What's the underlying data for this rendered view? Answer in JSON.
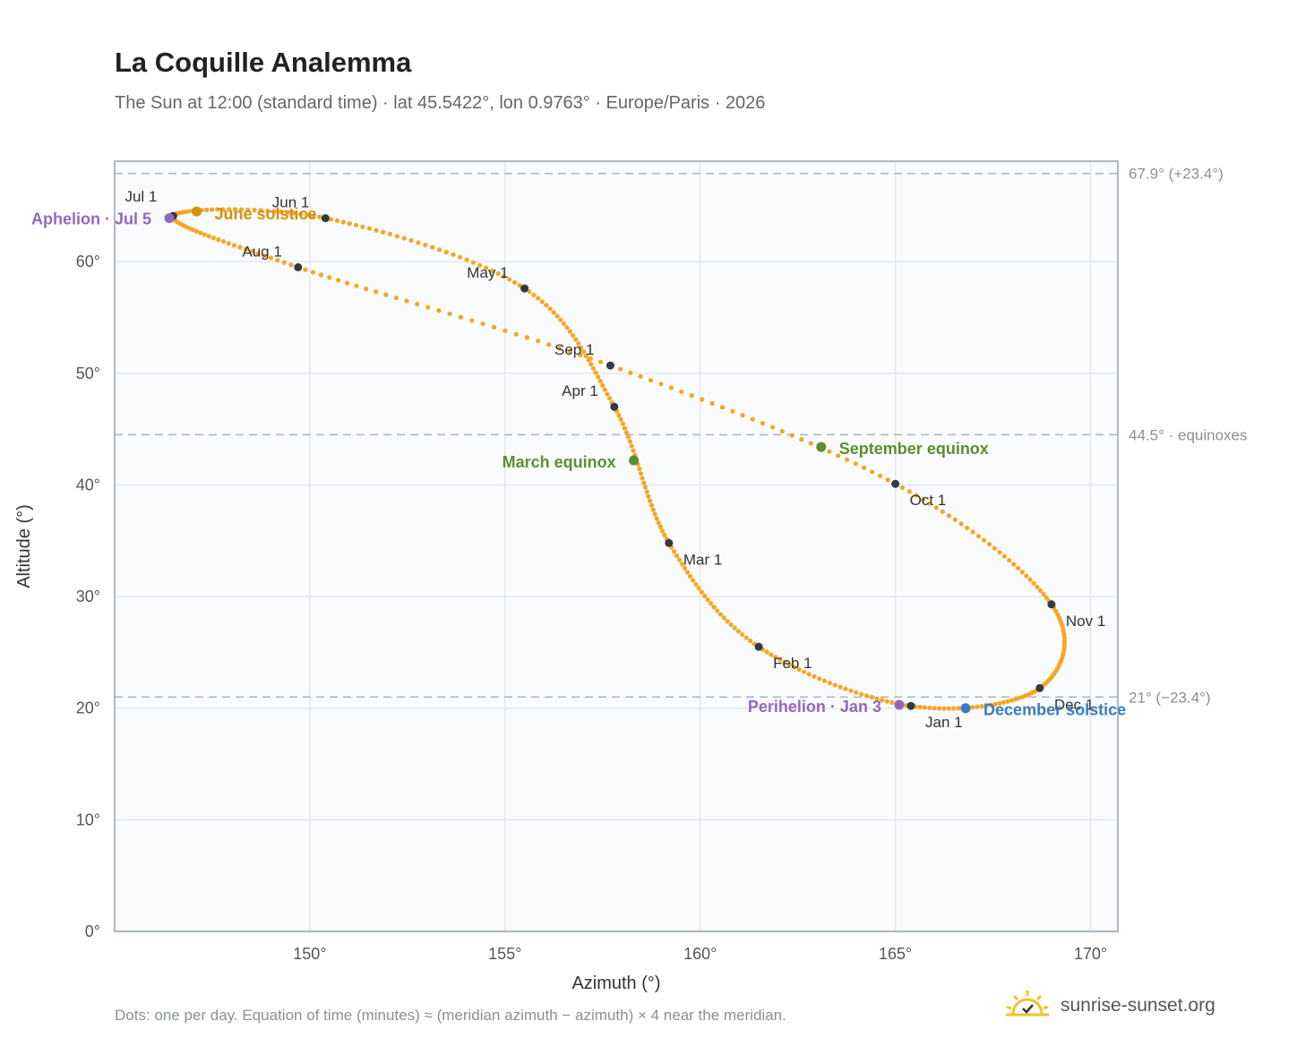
{
  "title": "La Coquille Analemma",
  "subtitle": "The Sun at 12:00 (standard time) · lat 45.5422°, lon 0.9763° · Europe/Paris · 2026",
  "footnote": "Dots: one per day. Equation of time (minutes) ≈ (meridian azimuth − azimuth) × 4 near the meridian.",
  "brand": {
    "name": "sunrise-sunset.org",
    "icon": "sun-horizon-icon"
  },
  "colors": {
    "curve": "#f5a623",
    "month_dot": "#333a44",
    "aphelion": "#9467bd",
    "perihelion": "#9467bd",
    "june_solstice": "#d4900f",
    "december_solstice": "#3a7cc2",
    "equinox": "#5b8f2e",
    "reference_line": "#a9b4bf",
    "plot_bg": "#f9fbfd",
    "grid": "#e3e8ee",
    "frame": "#97a2ae"
  },
  "chart_data": {
    "type": "scatter",
    "xlabel": "Azimuth (°)",
    "ylabel": "Altitude (°)",
    "xlim": [
      145,
      170.7
    ],
    "ylim": [
      0,
      69
    ],
    "x_ticks": [
      150,
      155,
      160,
      165,
      170
    ],
    "y_ticks": [
      0,
      10,
      20,
      30,
      40,
      50,
      60
    ],
    "x_tick_labels": [
      "150°",
      "155°",
      "160°",
      "165°",
      "170°"
    ],
    "y_tick_labels": [
      "0°",
      "10°",
      "20°",
      "30°",
      "40°",
      "50°",
      "60°"
    ],
    "grid": true,
    "series": [
      {
        "points_per": "day",
        "month_markers": [
          {
            "label": "Jan 1",
            "azimuth": 165.4,
            "altitude": 20.2
          },
          {
            "label": "Feb 1",
            "azimuth": 161.5,
            "altitude": 25.5
          },
          {
            "label": "Mar 1",
            "azimuth": 159.2,
            "altitude": 34.8
          },
          {
            "label": "Apr 1",
            "azimuth": 157.8,
            "altitude": 47.0
          },
          {
            "label": "May 1",
            "azimuth": 155.5,
            "altitude": 57.6
          },
          {
            "label": "Jun 1",
            "azimuth": 150.4,
            "altitude": 63.9
          },
          {
            "label": "Jul 1",
            "azimuth": 146.5,
            "altitude": 64.1
          },
          {
            "label": "Aug 1",
            "azimuth": 149.7,
            "altitude": 59.5
          },
          {
            "label": "Sep 1",
            "azimuth": 157.7,
            "altitude": 50.7
          },
          {
            "label": "Oct 1",
            "azimuth": 165.0,
            "altitude": 40.1
          },
          {
            "label": "Nov 1",
            "azimuth": 169.0,
            "altitude": 29.3
          },
          {
            "label": "Dec 1",
            "azimuth": 168.7,
            "altitude": 21.8
          }
        ]
      }
    ],
    "events": [
      {
        "label": "Aphelion · Jul 5",
        "azimuth": 146.4,
        "altitude": 63.9
      },
      {
        "label": "June solstice",
        "azimuth": 147.1,
        "altitude": 64.5
      },
      {
        "label": "March equinox",
        "azimuth": 158.3,
        "altitude": 42.2
      },
      {
        "label": "September equinox",
        "azimuth": 163.1,
        "altitude": 43.4
      },
      {
        "label": "Perihelion · Jan 3",
        "azimuth": 165.1,
        "altitude": 20.3
      },
      {
        "label": "December solstice",
        "azimuth": 166.8,
        "altitude": 20.0
      }
    ],
    "reference_lines": [
      {
        "altitude": 67.9,
        "label": "67.9° (+23.4°)"
      },
      {
        "altitude": 44.5,
        "label": "44.5° · equinoxes"
      },
      {
        "altitude": 21.0,
        "label": "21° (−23.4°)"
      }
    ]
  }
}
